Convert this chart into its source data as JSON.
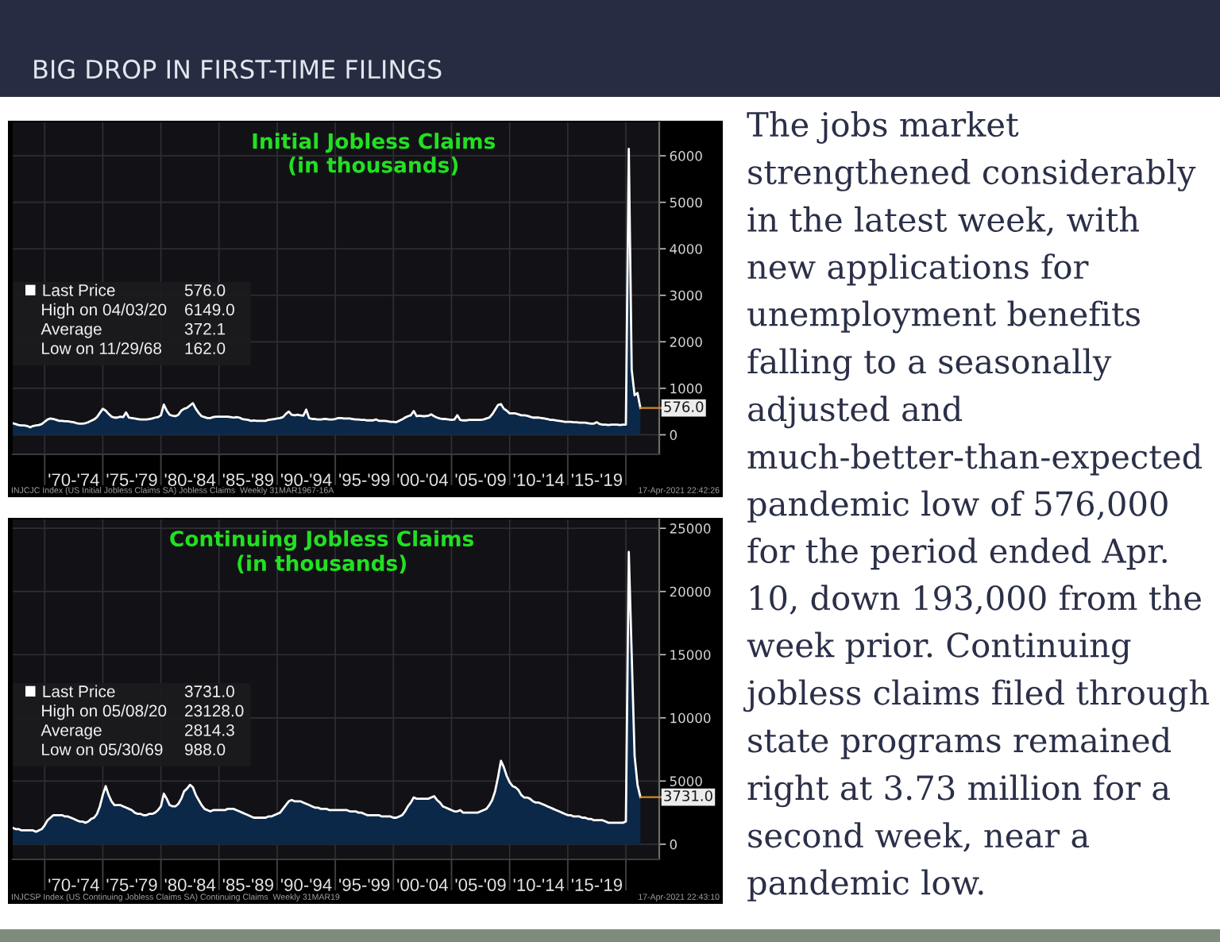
{
  "chart_data": [
    {
      "type": "other",
      "title": "BIG DROP IN FIRST-TIME FILINGS",
      "annotations": [
        "The jobs market strengthened considerably in the latest week, with new applications for unemployment benefits falling to a seasonally adjusted and much-better-than-expected pandemic low of 576,000 for the period ended Apr. 10, down 193,000 from the week prior. Continuing jobless claims filed through state programs remained right at 3.73 million for a second week, near a pandemic low."
      ]
    },
    {
      "type": "area",
      "title": "Initial Jobless Claims",
      "subtitle": "(in thousands)",
      "categories": [
        null,
        null,
        null,
        null,
        null,
        null,
        null,
        null,
        null,
        null,
        null,
        null,
        null,
        null,
        null,
        null,
        null,
        null,
        null,
        null,
        null,
        "'70-'74",
        null,
        null,
        null,
        null,
        null,
        null,
        null,
        null,
        null,
        null,
        null,
        null,
        null,
        null,
        null,
        null,
        null,
        null,
        null,
        "'75-'79",
        null,
        null,
        null,
        null,
        null,
        null,
        null,
        null,
        null,
        null,
        null,
        null,
        null,
        null,
        null,
        null,
        null,
        null,
        null,
        "'80-'84",
        null,
        null,
        null,
        null,
        null,
        null,
        null,
        null,
        null,
        null,
        null,
        null,
        null,
        null,
        null,
        null,
        null,
        null,
        null,
        "'85-'89",
        null,
        null,
        null,
        null,
        null,
        null,
        null,
        null,
        null,
        null,
        null,
        null,
        null,
        null,
        null,
        null,
        null,
        null,
        null,
        "'90-'94",
        null,
        null,
        null,
        null,
        null,
        null,
        null,
        null,
        null,
        null,
        null,
        null,
        null,
        null,
        null,
        null,
        null,
        null,
        null,
        "'95-'99",
        null,
        null,
        null,
        null,
        null,
        null,
        null,
        null,
        null,
        null,
        null,
        null,
        null,
        null,
        null,
        null,
        null,
        null,
        null,
        "'00-'04",
        null,
        null,
        null,
        null,
        null,
        null,
        null,
        null,
        null,
        null,
        null,
        null,
        null,
        null,
        null,
        null,
        null,
        null,
        null,
        "'05-'09",
        null,
        null,
        null,
        null,
        null,
        null,
        null,
        null,
        null,
        null,
        null,
        null,
        null,
        null,
        null,
        null,
        null,
        null,
        null,
        "'10-'14",
        null,
        null,
        null,
        null,
        null,
        null,
        null,
        null,
        null,
        null,
        null,
        null,
        null,
        null,
        null,
        null,
        null,
        null,
        null,
        "'15-'19",
        null,
        null,
        null,
        null,
        null,
        null,
        null,
        null,
        null,
        null,
        null,
        null,
        null,
        null,
        null
      ],
      "series": [
        {
          "name": "Last Price",
          "color": "#ffffff",
          "values": [
            250,
            230,
            210,
            200,
            200,
            190,
            162,
            190,
            200,
            210,
            230,
            280,
            330,
            350,
            340,
            320,
            300,
            300,
            290,
            290,
            280,
            270,
            250,
            240,
            240,
            250,
            270,
            300,
            330,
            380,
            470,
            560,
            520,
            450,
            390,
            370,
            370,
            390,
            380,
            480,
            370,
            360,
            350,
            340,
            330,
            330,
            330,
            340,
            350,
            370,
            380,
            420,
            650,
            520,
            430,
            410,
            400,
            430,
            520,
            560,
            580,
            630,
            680,
            560,
            470,
            400,
            380,
            360,
            360,
            380,
            390,
            390,
            390,
            390,
            390,
            380,
            370,
            380,
            370,
            340,
            330,
            320,
            300,
            310,
            300,
            300,
            300,
            300,
            320,
            330,
            340,
            350,
            360,
            380,
            450,
            500,
            430,
            420,
            430,
            420,
            410,
            540,
            360,
            340,
            340,
            330,
            330,
            340,
            340,
            330,
            330,
            340,
            360,
            360,
            350,
            350,
            350,
            340,
            330,
            330,
            320,
            320,
            310,
            310,
            310,
            330,
            300,
            300,
            300,
            290,
            280,
            280,
            270,
            300,
            330,
            370,
            400,
            420,
            510,
            400,
            410,
            400,
            400,
            410,
            440,
            400,
            370,
            350,
            340,
            340,
            330,
            320,
            330,
            420,
            320,
            310,
            310,
            320,
            320,
            320,
            320,
            320,
            330,
            350,
            370,
            440,
            540,
            640,
            660,
            560,
            520,
            460,
            460,
            460,
            440,
            420,
            420,
            410,
            390,
            370,
            370,
            370,
            360,
            350,
            340,
            320,
            320,
            310,
            300,
            290,
            280,
            280,
            280,
            270,
            270,
            260,
            260,
            260,
            250,
            240,
            240,
            270,
            230,
            220,
            220,
            210,
            220,
            220,
            220,
            210,
            220,
            220,
            6149,
            1400,
            850,
            900,
            576
          ]
        }
      ],
      "ylim": [
        -420,
        6720
      ],
      "yticks": [
        0,
        1000,
        2000,
        3000,
        4000,
        5000,
        6000
      ],
      "grid": true,
      "legend": "left",
      "annotations": [
        "576.0",
        "576.0",
        "High on 04/03/20 6149.0",
        "Average 372.1",
        "Low on 11/29/68 162.0",
        "INJCJC Index (US Initial Jobless Claims SA) Jobless Claims  Weekly 31MAR1967-16A",
        "17-Apr-2021 22:42:26"
      ]
    },
    {
      "type": "area",
      "title": "Continuing Jobless Claims",
      "subtitle": "(in thousands)",
      "categories": [
        null,
        null,
        null,
        null,
        null,
        null,
        null,
        null,
        null,
        null,
        null,
        null,
        null,
        null,
        null,
        null,
        null,
        null,
        null,
        null,
        null,
        "'70-'74",
        null,
        null,
        null,
        null,
        null,
        null,
        null,
        null,
        null,
        null,
        null,
        null,
        null,
        null,
        null,
        null,
        null,
        null,
        null,
        "'75-'79",
        null,
        null,
        null,
        null,
        null,
        null,
        null,
        null,
        null,
        null,
        null,
        null,
        null,
        null,
        null,
        null,
        null,
        null,
        null,
        "'80-'84",
        null,
        null,
        null,
        null,
        null,
        null,
        null,
        null,
        null,
        null,
        null,
        null,
        null,
        null,
        null,
        null,
        null,
        null,
        null,
        "'85-'89",
        null,
        null,
        null,
        null,
        null,
        null,
        null,
        null,
        null,
        null,
        null,
        null,
        null,
        null,
        null,
        null,
        null,
        null,
        null,
        "'90-'94",
        null,
        null,
        null,
        null,
        null,
        null,
        null,
        null,
        null,
        null,
        null,
        null,
        null,
        null,
        null,
        null,
        null,
        null,
        null,
        "'95-'99",
        null,
        null,
        null,
        null,
        null,
        null,
        null,
        null,
        null,
        null,
        null,
        null,
        null,
        null,
        null,
        null,
        null,
        null,
        null,
        "'00-'04",
        null,
        null,
        null,
        null,
        null,
        null,
        null,
        null,
        null,
        null,
        null,
        null,
        null,
        null,
        null,
        null,
        null,
        null,
        null,
        "'05-'09",
        null,
        null,
        null,
        null,
        null,
        null,
        null,
        null,
        null,
        null,
        null,
        null,
        null,
        null,
        null,
        null,
        null,
        null,
        null,
        "'10-'14",
        null,
        null,
        null,
        null,
        null,
        null,
        null,
        null,
        null,
        null,
        null,
        null,
        null,
        null,
        null,
        null,
        null,
        null,
        null,
        "'15-'19",
        null,
        null,
        null,
        null,
        null,
        null,
        null,
        null,
        null,
        null,
        null,
        null,
        null,
        null,
        null
      ],
      "series": [
        {
          "name": "Last Price",
          "color": "#ffffff",
          "values": [
            1300,
            1200,
            1200,
            1100,
            1100,
            1100,
            1100,
            1100,
            988,
            1100,
            1200,
            1500,
            1900,
            2100,
            2300,
            2300,
            2300,
            2300,
            2200,
            2200,
            2100,
            2000,
            1900,
            1800,
            1800,
            1700,
            1800,
            2000,
            2100,
            2400,
            3000,
            3900,
            4600,
            3900,
            3400,
            3100,
            3100,
            3100,
            3000,
            2900,
            2800,
            2700,
            2500,
            2400,
            2400,
            2300,
            2300,
            2400,
            2400,
            2500,
            2700,
            3000,
            4000,
            3600,
            3100,
            3000,
            3000,
            3200,
            3600,
            4200,
            4400,
            4700,
            4500,
            3900,
            3500,
            3100,
            2800,
            2700,
            2600,
            2700,
            2700,
            2700,
            2700,
            2700,
            2800,
            2800,
            2800,
            2700,
            2600,
            2500,
            2400,
            2300,
            2200,
            2100,
            2100,
            2100,
            2100,
            2100,
            2200,
            2200,
            2300,
            2400,
            2500,
            2800,
            3100,
            3400,
            3500,
            3400,
            3400,
            3400,
            3300,
            3200,
            3100,
            3000,
            2900,
            2900,
            2800,
            2800,
            2800,
            2700,
            2700,
            2700,
            2700,
            2700,
            2700,
            2700,
            2600,
            2600,
            2600,
            2500,
            2500,
            2400,
            2300,
            2300,
            2300,
            2300,
            2300,
            2200,
            2200,
            2200,
            2200,
            2100,
            2100,
            2200,
            2300,
            2600,
            3000,
            3300,
            3700,
            3600,
            3600,
            3600,
            3600,
            3600,
            3700,
            3800,
            3500,
            3300,
            3000,
            2900,
            2800,
            2700,
            2600,
            2600,
            2700,
            2500,
            2500,
            2500,
            2500,
            2500,
            2500,
            2600,
            2700,
            2800,
            3100,
            3500,
            4200,
            5300,
            6600,
            6100,
            5400,
            4900,
            4600,
            4500,
            4300,
            3900,
            3700,
            3700,
            3600,
            3400,
            3300,
            3300,
            3200,
            3100,
            3000,
            2900,
            2800,
            2700,
            2600,
            2500,
            2400,
            2300,
            2300,
            2200,
            2200,
            2200,
            2100,
            2100,
            2000,
            2000,
            1900,
            1900,
            1900,
            1900,
            1800,
            1700,
            1700,
            1700,
            1700,
            1700,
            1700,
            1800,
            23128,
            15000,
            7000,
            4700,
            3731
          ]
        }
      ],
      "ylim": [
        -1200,
        25700
      ],
      "yticks": [
        0,
        5000,
        10000,
        15000,
        20000,
        25000
      ],
      "grid": true,
      "legend": "left",
      "annotations": [
        "3731.0",
        "3731.0",
        "High on 05/08/20 23128.0",
        "Average 2814.3",
        "Low on 05/30/69 988.0",
        "INJCSP Index (US Continuing Jobless Claims SA) Continuing Claims  Weekly 31MAR19",
        "17-Apr-2021 22:43:10"
      ]
    }
  ]
}
